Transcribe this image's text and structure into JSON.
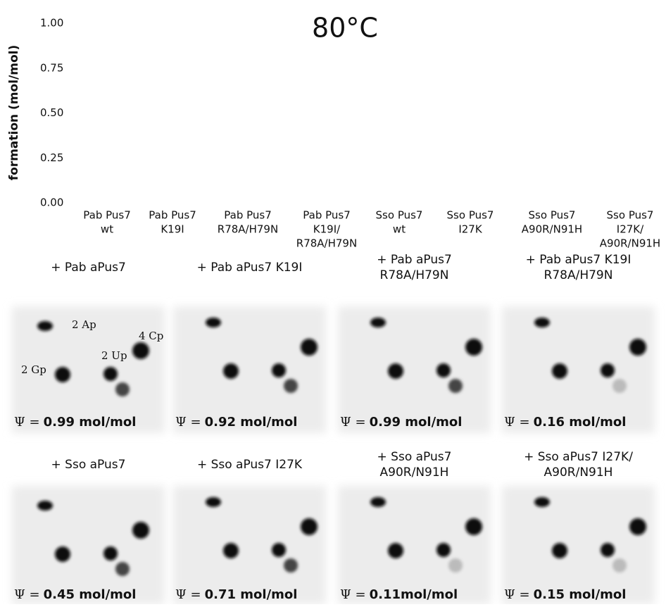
{
  "chart_data": {
    "type": "bar",
    "title": "80°C",
    "y_label": "formation (mol/mol)",
    "categories": [
      [
        "Pab Pus7",
        "wt"
      ],
      [
        "Pab Pus7",
        "K19I"
      ],
      [
        "Pab Pus7",
        "R78A/H79N"
      ],
      [
        "Pab Pus7",
        "K19I/",
        "R78A/H79N"
      ],
      [
        "Sso Pus7",
        "wt"
      ],
      [
        "Sso Pus7",
        "I27K"
      ],
      [
        "Sso Pus7",
        "A90R/N91H"
      ],
      [
        "Sso Pus7",
        "I27K/",
        "A90R/N91H"
      ]
    ],
    "ylim": [
      0,
      1
    ],
    "yticks": [
      {
        "value": 0,
        "label": "0.00"
      },
      0.25,
      {
        "value": 0.5,
        "label": "0.50"
      },
      0.75,
      {
        "value": 1,
        "label": "1.00"
      }
    ],
    "grid": false
  },
  "panels": [
    {
      "title": [
        "+ Pab aPus7"
      ],
      "psi_label": "Ψ =",
      "result": "0.99 mol/mol",
      "spot_labels": [
        "2 Ap",
        "2 Up",
        "4 Cp",
        "2 Gp"
      ]
    },
    {
      "title": [
        "+ Pab aPus7 K19I"
      ],
      "psi_label": "Ψ =",
      "result": "0.92 mol/mol"
    },
    {
      "title": [
        "+ Pab aPus7",
        "R78A/H79N"
      ],
      "psi_label": "Ψ =",
      "result": "0.99 mol/mol"
    },
    {
      "title": [
        "+ Pab aPus7 K19I",
        "R78A/H79N"
      ],
      "psi_label": "Ψ =",
      "result": "0.16 mol/mol"
    },
    {
      "title": [
        "+ Sso aPus7"
      ],
      "psi_label": "Ψ =",
      "result": "0.45 mol/mol"
    },
    {
      "title": [
        "+ Sso aPus7 I27K"
      ],
      "psi_label": "Ψ =",
      "result": "0.71 mol/mol"
    },
    {
      "title": [
        "+ Sso aPus7",
        "A90R/N91H"
      ],
      "psi_label": "Ψ =",
      "result": "0.11mol/mol"
    },
    {
      "title": [
        "+ Sso aPus7 I27K/",
        "A90R/N91H"
      ],
      "psi_label": "Ψ =",
      "result": "0.15 mol/mol"
    }
  ]
}
